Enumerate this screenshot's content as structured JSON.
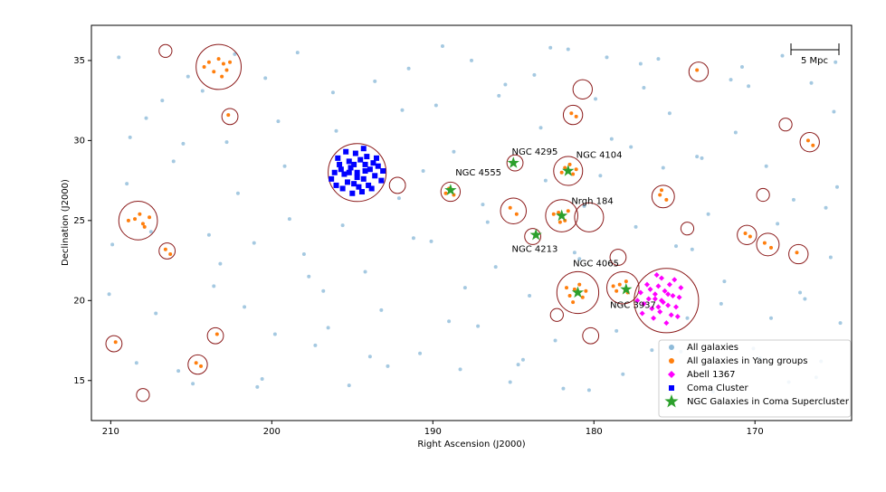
{
  "chart_data": {
    "type": "scatter",
    "xlabel": "Right Ascension (J2000)",
    "ylabel": "Declination (J2000)",
    "xlim": [
      211.2,
      164.0
    ],
    "ylim": [
      12.5,
      37.2
    ],
    "xticks": [
      210,
      200,
      190,
      180,
      170
    ],
    "yticks": [
      15,
      20,
      25,
      30,
      35
    ],
    "scale_bar": "5 Mpc",
    "series": [
      {
        "name": "All galaxies",
        "color": "#1f77b4",
        "marker": "dot",
        "x": [
          209.5,
          207.8,
          206.1,
          204.9,
          203.2,
          201.7,
          200.4,
          198.9,
          197.3,
          196.0,
          194.2,
          192.8,
          191.5,
          190.1,
          188.7,
          187.2,
          185.9,
          184.4,
          183.0,
          181.6,
          180.3,
          178.9,
          177.4,
          176.0,
          174.6,
          173.3,
          171.9,
          170.4,
          169.0,
          167.6,
          166.2,
          165.1,
          210.1,
          208.4,
          206.8,
          205.5,
          203.9,
          202.3,
          200.9,
          199.6,
          198.0,
          196.5,
          193.6,
          192.1,
          190.8,
          189.4,
          188.0,
          186.6,
          185.2,
          183.7,
          182.4,
          180.9,
          179.6,
          178.2,
          176.9,
          175.3,
          173.9,
          172.6,
          171.2,
          169.7,
          168.3,
          166.9,
          165.6,
          164.7,
          209.0,
          207.2,
          205.8,
          204.3,
          202.8,
          201.1,
          199.8,
          198.4,
          196.8,
          195.2,
          193.9,
          191.9,
          190.6,
          189.0,
          187.6,
          186.1,
          184.7,
          183.3,
          181.9,
          180.6,
          179.2,
          177.7,
          176.4,
          174.9,
          173.6,
          172.1,
          170.8,
          169.3,
          167.9,
          166.5,
          165.3,
          164.9,
          208.8,
          207.5,
          205.2,
          203.6,
          202.1,
          200.6,
          199.2,
          197.7,
          196.2,
          195.6,
          193.2,
          191.2,
          189.8,
          188.3,
          186.9,
          185.5,
          184.0,
          182.7,
          181.2,
          179.9,
          178.6,
          177.1,
          175.7,
          174.2,
          172.9,
          171.5,
          170.1,
          168.6,
          167.2,
          165.9,
          165.0,
          209.9
        ],
        "y": [
          35.2,
          31.4,
          28.7,
          14.8,
          22.3,
          19.6,
          33.9,
          25.1,
          17.2,
          30.6,
          21.8,
          15.9,
          34.5,
          23.7,
          29.3,
          18.4,
          32.8,
          16.3,
          27.5,
          35.7,
          14.4,
          30.1,
          24.6,
          35.1,
          16.8,
          28.9,
          21.2,
          33.4,
          18.9,
          26.3,
          15.2,
          31.8,
          20.4,
          16.1,
          32.5,
          29.8,
          24.1,
          35.4,
          14.6,
          31.2,
          22.9,
          18.3,
          33.7,
          26.4,
          16.7,
          35.9,
          20.8,
          24.9,
          14.9,
          34.1,
          17.5,
          22.6,
          27.8,
          15.4,
          33.3,
          31.7,
          23.2,
          14.3,
          30.5,
          16.4,
          35.3,
          20.1,
          25.8,
          18.6,
          27.3,
          19.2,
          15.6,
          33.1,
          29.9,
          23.6,
          17.9,
          35.5,
          20.6,
          14.7,
          16.5,
          31.9,
          28.1,
          18.7,
          35.0,
          22.1,
          16.0,
          30.8,
          14.5,
          25.9,
          35.2,
          29.6,
          16.9,
          23.4,
          29.0,
          19.8,
          34.6,
          28.4,
          14.9,
          33.6,
          22.7,
          27.1,
          30.2,
          24.3,
          34.0,
          20.9,
          26.7,
          15.1,
          28.4,
          21.5,
          33.0,
          24.7,
          19.4,
          23.9,
          32.2,
          15.7,
          26.0,
          33.5,
          20.3,
          35.8,
          23.0,
          32.6,
          18.1,
          34.8,
          28.3,
          18.9,
          25.4,
          33.8,
          17.0,
          24.8,
          20.5,
          16.2,
          34.9,
          23.5
        ]
      },
      {
        "name": "All galaxies in Yang groups",
        "color": "#ff7f0e",
        "marker": "dot",
        "x": [
          203.0,
          203.6,
          203.9,
          202.8,
          203.3,
          204.2,
          203.1,
          202.6,
          208.5,
          208.0,
          207.6,
          208.9,
          208.2,
          207.9,
          181.2,
          180.7,
          181.5,
          180.9,
          181.3,
          180.5,
          181.7,
          178.4,
          177.9,
          178.6,
          178.0,
          178.8,
          182.2,
          181.8,
          182.5,
          181.6,
          182.1,
          181.8,
          181.3,
          182.0,
          181.5,
          181.1,
          189.0,
          188.7,
          189.2,
          175.9,
          175.5,
          175.8,
          169.4,
          169.0,
          166.7,
          166.4,
          185.2,
          184.8,
          173.6,
          206.6,
          206.3,
          204.7,
          204.4,
          203.4,
          170.6,
          170.3,
          167.4,
          181.4,
          181.1,
          202.7,
          209.7
        ],
        "y": [
          34.8,
          34.3,
          34.9,
          34.4,
          35.1,
          34.6,
          34.0,
          34.9,
          25.1,
          24.8,
          25.2,
          25.0,
          25.4,
          24.6,
          20.7,
          20.2,
          20.3,
          21.0,
          19.9,
          20.6,
          20.8,
          21.0,
          20.5,
          20.6,
          21.2,
          20.9,
          25.5,
          25.0,
          25.4,
          25.6,
          24.9,
          28.3,
          27.9,
          28.0,
          28.5,
          28.2,
          27.0,
          26.6,
          26.7,
          26.6,
          26.3,
          26.9,
          23.6,
          23.3,
          30.0,
          29.7,
          25.8,
          25.4,
          34.4,
          23.2,
          22.9,
          16.1,
          15.9,
          17.9,
          24.2,
          24.0,
          23.0,
          31.7,
          31.5,
          31.6,
          17.4
        ]
      },
      {
        "name": "Abell 1367",
        "color": "#ff00ff",
        "marker": "diamond",
        "x": [
          175.8,
          176.2,
          175.4,
          176.6,
          175.1,
          175.9,
          176.0,
          175.3,
          176.9,
          174.9,
          176.4,
          175.6,
          177.1,
          174.7,
          175.8,
          176.3,
          175.2,
          177.0,
          174.6,
          176.7,
          175.5,
          176.1,
          174.8,
          177.3,
          175.0,
          176.5,
          175.7,
          176.0,
          175.4,
          176.2
        ],
        "y": [
          20.0,
          20.4,
          19.7,
          20.1,
          20.3,
          19.3,
          20.9,
          21.0,
          19.8,
          19.6,
          19.5,
          20.6,
          20.5,
          20.2,
          21.4,
          18.9,
          19.1,
          19.2,
          20.8,
          21.0,
          18.6,
          21.6,
          19.0,
          20.0,
          21.3,
          20.7,
          19.9,
          19.6,
          20.4,
          20.1
        ]
      },
      {
        "name": "Coma Cluster",
        "color": "#0000ff",
        "marker": "square",
        "x": [
          194.7,
          195.1,
          194.3,
          195.5,
          193.9,
          194.9,
          194.5,
          195.8,
          193.6,
          194.2,
          195.3,
          194.0,
          196.1,
          193.4,
          194.8,
          195.6,
          194.4,
          193.2,
          195.9,
          194.1,
          196.3,
          193.5,
          195.2,
          194.6,
          193.8,
          195.4,
          194.3,
          196.0,
          193.1,
          195.0,
          194.7,
          195.2,
          194.2,
          193.7,
          195.7,
          194.9
        ],
        "y": [
          28.0,
          28.3,
          27.6,
          27.9,
          28.2,
          27.3,
          28.8,
          28.5,
          27.8,
          28.5,
          27.4,
          27.2,
          28.0,
          28.4,
          29.2,
          27.0,
          26.8,
          27.5,
          28.9,
          29.0,
          27.6,
          28.9,
          28.7,
          27.1,
          27.0,
          29.3,
          29.5,
          27.2,
          28.1,
          26.7,
          27.7,
          28.0,
          28.1,
          28.6,
          28.2,
          28.5
        ]
      },
      {
        "name": "NGC Galaxies in Coma Supercluster",
        "color": "#2ca02c",
        "marker": "star",
        "x": [
          188.9,
          185.0,
          181.6,
          182.0,
          183.6,
          181.0,
          178.0
        ],
        "y": [
          26.9,
          28.6,
          28.1,
          25.3,
          24.1,
          20.5,
          20.7
        ]
      }
    ],
    "group_circles": {
      "color": "#8b1a1a",
      "x": [
        203.3,
        208.3,
        194.7,
        175.5,
        181.0,
        178.2,
        182.0,
        180.3,
        181.6,
        185.0,
        188.9,
        192.2,
        175.7,
        169.2,
        166.6,
        173.5,
        181.3,
        180.7,
        202.6,
        206.5,
        209.8,
        204.6,
        203.5,
        167.3,
        170.5,
        183.8,
        208.0,
        180.2,
        178.5,
        174.2,
        182.3,
        169.5,
        168.1,
        206.6,
        184.9
      ],
      "y": [
        34.6,
        25.0,
        28.0,
        20.0,
        20.5,
        20.8,
        25.3,
        25.2,
        28.1,
        25.6,
        26.8,
        27.2,
        26.5,
        23.5,
        29.9,
        34.3,
        31.6,
        33.2,
        31.5,
        23.1,
        17.3,
        16.0,
        17.8,
        22.9,
        24.1,
        24.0,
        14.1,
        17.8,
        22.7,
        24.5,
        19.1,
        26.6,
        31.0,
        35.6,
        28.6
      ],
      "r": [
        1.4,
        1.2,
        1.8,
        2.0,
        1.3,
        1.0,
        1.0,
        0.9,
        0.9,
        0.8,
        0.6,
        0.5,
        0.7,
        0.7,
        0.6,
        0.6,
        0.6,
        0.6,
        0.5,
        0.5,
        0.5,
        0.6,
        0.5,
        0.6,
        0.6,
        0.5,
        0.4,
        0.5,
        0.5,
        0.4,
        0.4,
        0.4,
        0.4,
        0.4,
        0.5
      ]
    },
    "annotations": [
      {
        "text": "NGC 4295",
        "x": 185.1,
        "y": 29.3
      },
      {
        "text": "NGC 4104",
        "x": 181.1,
        "y": 29.1
      },
      {
        "text": "NGC 4555",
        "x": 188.6,
        "y": 28.0
      },
      {
        "text": "Nrgh 184",
        "x": 181.4,
        "y": 26.2
      },
      {
        "text": "NGC 4213",
        "x": 185.1,
        "y": 23.2
      },
      {
        "text": "NGC 4065",
        "x": 181.3,
        "y": 22.3
      },
      {
        "text": "NGC 3937",
        "x": 179.0,
        "y": 19.7
      }
    ],
    "legend": "lower right"
  }
}
